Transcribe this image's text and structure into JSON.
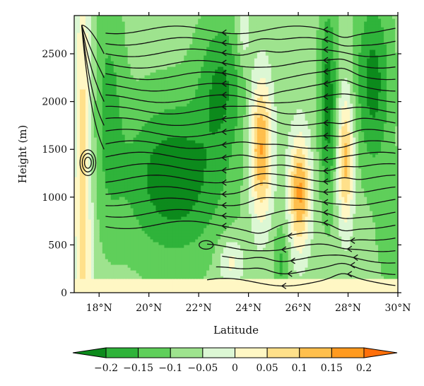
{
  "chart_data": {
    "type": "heatmap",
    "title": "",
    "xlabel": "Latitude",
    "ylabel": "Height (m)",
    "x_ticks": [
      "18°N",
      "20°N",
      "22°N",
      "24°N",
      "26°N",
      "28°N",
      "30°N"
    ],
    "x_tick_values": [
      18,
      20,
      22,
      24,
      26,
      28,
      30
    ],
    "xlim": [
      17,
      30
    ],
    "y_ticks": [
      "0",
      "500",
      "1000",
      "1500",
      "2000",
      "2500"
    ],
    "y_tick_values": [
      0,
      500,
      1000,
      1500,
      2000,
      2500
    ],
    "ylim": [
      0,
      2900
    ],
    "colorbar": {
      "labels": [
        "−0.2",
        "−0.15",
        "−0.1",
        "−0.05",
        "0",
        "0.05",
        "0.1",
        "0.15",
        "0.2"
      ],
      "levels": [
        -0.2,
        -0.15,
        -0.1,
        -0.05,
        0,
        0.05,
        0.1,
        0.15,
        0.2
      ],
      "colors": [
        "#0c8a1c",
        "#2fb33a",
        "#5fcf5a",
        "#9ee38e",
        "#dcf7d4",
        "#fff7c4",
        "#ffe08a",
        "#ffbf4d",
        "#ff9a1f",
        "#ff6f0a"
      ]
    },
    "streamlines": true
  }
}
